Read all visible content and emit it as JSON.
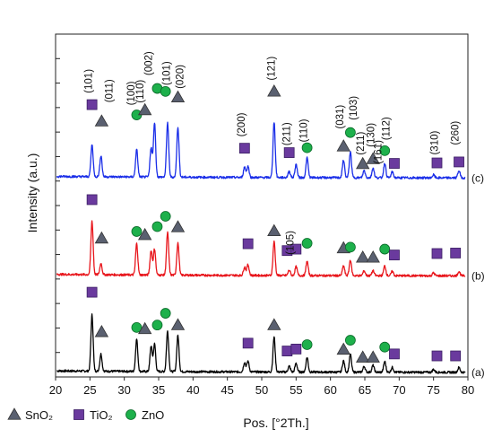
{
  "chart_data": {
    "type": "line",
    "title": "",
    "xlabel": "Pos. [°2Th.]",
    "ylabel": "Intensity (a.u.)",
    "xlim": [
      20,
      80
    ],
    "x_ticks": [
      20,
      25,
      30,
      35,
      40,
      45,
      50,
      55,
      60,
      65,
      70,
      75,
      80
    ],
    "grid": false,
    "legend": {
      "position": "bottom-left",
      "entries": [
        {
          "label": "SnO₂",
          "marker": "triangle",
          "color": "#5a6070"
        },
        {
          "label": "TiO₂",
          "marker": "square",
          "color": "#6a3a9e"
        },
        {
          "label": "ZnO",
          "marker": "circle",
          "color": "#1db04b"
        }
      ]
    },
    "series": [
      {
        "label": "(a)",
        "color": "#000000",
        "baseline": 0.9,
        "peaks": [
          {
            "x": 25.3,
            "h": 11.5
          },
          {
            "x": 26.6,
            "h": 3.5
          },
          {
            "x": 31.8,
            "h": 6.6
          },
          {
            "x": 33.9,
            "h": 5.2
          },
          {
            "x": 34.4,
            "h": 5.6
          },
          {
            "x": 36.3,
            "h": 8.3
          },
          {
            "x": 37.8,
            "h": 7.4
          },
          {
            "x": 47.5,
            "h": 1.9
          },
          {
            "x": 48.0,
            "h": 2.2
          },
          {
            "x": 51.8,
            "h": 7.1
          },
          {
            "x": 54.0,
            "h": 1.2
          },
          {
            "x": 55.0,
            "h": 1.8
          },
          {
            "x": 56.6,
            "h": 3.0
          },
          {
            "x": 61.9,
            "h": 2.3
          },
          {
            "x": 62.9,
            "h": 3.6
          },
          {
            "x": 64.9,
            "h": 1.2
          },
          {
            "x": 66.2,
            "h": 1.4
          },
          {
            "x": 67.9,
            "h": 2.2
          },
          {
            "x": 69.0,
            "h": 1.0
          },
          {
            "x": 75.0,
            "h": 0.6
          },
          {
            "x": 78.7,
            "h": 1.0
          }
        ],
        "markers": [
          {
            "type": "TiO2",
            "x": 25.3,
            "y": 17.3
          },
          {
            "type": "SnO2",
            "x": 26.7,
            "y": 9.2
          },
          {
            "type": "ZnO",
            "x": 31.8,
            "y": 10.1
          },
          {
            "type": "SnO2",
            "x": 33.0,
            "y": 9.8
          },
          {
            "type": "ZnO",
            "x": 34.8,
            "y": 10.6
          },
          {
            "type": "ZnO",
            "x": 36.0,
            "y": 13.0
          },
          {
            "type": "SnO2",
            "x": 37.8,
            "y": 10.6
          },
          {
            "type": "TiO2",
            "x": 48.0,
            "y": 6.9
          },
          {
            "type": "SnO2",
            "x": 51.8,
            "y": 10.6
          },
          {
            "type": "TiO2",
            "x": 53.7,
            "y": 5.3
          },
          {
            "type": "TiO2",
            "x": 55.0,
            "y": 5.7
          },
          {
            "type": "ZnO",
            "x": 56.6,
            "y": 6.6
          },
          {
            "type": "SnO2",
            "x": 61.9,
            "y": 5.6
          },
          {
            "type": "ZnO",
            "x": 62.9,
            "y": 7.5
          },
          {
            "type": "SnO2",
            "x": 64.7,
            "y": 4.0
          },
          {
            "type": "SnO2",
            "x": 66.2,
            "y": 4.0
          },
          {
            "type": "ZnO",
            "x": 67.9,
            "y": 6.1
          },
          {
            "type": "TiO2",
            "x": 69.3,
            "y": 4.7
          },
          {
            "type": "TiO2",
            "x": 75.5,
            "y": 4.3
          },
          {
            "type": "TiO2",
            "x": 78.2,
            "y": 4.3
          }
        ]
      },
      {
        "label": "(b)",
        "color": "#e8151b",
        "baseline": 20.6,
        "peaks": [
          {
            "x": 25.3,
            "h": 11.0
          },
          {
            "x": 26.6,
            "h": 2.3
          },
          {
            "x": 31.8,
            "h": 6.4
          },
          {
            "x": 33.9,
            "h": 5.0
          },
          {
            "x": 34.4,
            "h": 5.3
          },
          {
            "x": 36.3,
            "h": 8.7
          },
          {
            "x": 37.8,
            "h": 6.6
          },
          {
            "x": 47.5,
            "h": 1.7
          },
          {
            "x": 48.0,
            "h": 2.2
          },
          {
            "x": 51.8,
            "h": 6.9
          },
          {
            "x": 54.0,
            "h": 1.1
          },
          {
            "x": 55.0,
            "h": 1.8
          },
          {
            "x": 56.6,
            "h": 2.9
          },
          {
            "x": 61.9,
            "h": 2.0
          },
          {
            "x": 62.9,
            "h": 3.2
          },
          {
            "x": 64.9,
            "h": 1.0
          },
          {
            "x": 66.2,
            "h": 1.0
          },
          {
            "x": 67.9,
            "h": 2.0
          },
          {
            "x": 69.0,
            "h": 0.9
          },
          {
            "x": 75.0,
            "h": 0.6
          },
          {
            "x": 78.7,
            "h": 0.9
          }
        ],
        "markers": [
          {
            "type": "TiO2",
            "x": 25.3,
            "y": 36.2
          },
          {
            "type": "SnO2",
            "x": 26.7,
            "y": 28.3
          },
          {
            "type": "ZnO",
            "x": 31.8,
            "y": 29.7
          },
          {
            "type": "SnO2",
            "x": 33.0,
            "y": 29.0
          },
          {
            "type": "ZnO",
            "x": 34.8,
            "y": 30.7
          },
          {
            "type": "ZnO",
            "x": 36.0,
            "y": 32.8
          },
          {
            "type": "SnO2",
            "x": 37.8,
            "y": 30.6
          },
          {
            "type": "TiO2",
            "x": 48.0,
            "y": 27.2
          },
          {
            "type": "SnO2",
            "x": 51.8,
            "y": 29.8
          },
          {
            "type": "TiO2",
            "x": 53.7,
            "y": 25.8
          },
          {
            "type": "TiO2",
            "x": 55.0,
            "y": 26.1
          },
          {
            "type": "ZnO",
            "x": 56.6,
            "y": 27.3
          },
          {
            "type": "SnO2",
            "x": 61.9,
            "y": 26.3
          },
          {
            "type": "ZnO",
            "x": 62.9,
            "y": 26.5
          },
          {
            "type": "SnO2",
            "x": 64.7,
            "y": 24.4
          },
          {
            "type": "SnO2",
            "x": 66.2,
            "y": 24.4
          },
          {
            "type": "ZnO",
            "x": 67.9,
            "y": 26.1
          },
          {
            "type": "TiO2",
            "x": 69.3,
            "y": 24.9
          },
          {
            "type": "TiO2",
            "x": 75.5,
            "y": 25.2
          },
          {
            "type": "TiO2",
            "x": 78.2,
            "y": 25.3
          }
        ],
        "annotations": [
          {
            "text": "(105)",
            "x": 54.6,
            "y": 27.4
          }
        ]
      },
      {
        "label": "(c)",
        "color": "#1a2ee8",
        "baseline": 40.6,
        "peaks": [
          {
            "x": 25.3,
            "h": 6.6
          },
          {
            "x": 26.6,
            "h": 4.3
          },
          {
            "x": 31.8,
            "h": 5.6
          },
          {
            "x": 33.9,
            "h": 6.0
          },
          {
            "x": 34.4,
            "h": 11.1
          },
          {
            "x": 36.3,
            "h": 11.1
          },
          {
            "x": 37.8,
            "h": 10.3
          },
          {
            "x": 47.5,
            "h": 2.1
          },
          {
            "x": 48.0,
            "h": 2.3
          },
          {
            "x": 51.8,
            "h": 11.3
          },
          {
            "x": 54.0,
            "h": 1.3
          },
          {
            "x": 55.0,
            "h": 2.7
          },
          {
            "x": 56.6,
            "h": 4.0
          },
          {
            "x": 61.9,
            "h": 3.6
          },
          {
            "x": 62.9,
            "h": 5.2
          },
          {
            "x": 64.9,
            "h": 1.5
          },
          {
            "x": 66.2,
            "h": 2.0
          },
          {
            "x": 67.9,
            "h": 3.0
          },
          {
            "x": 69.0,
            "h": 1.2
          },
          {
            "x": 75.0,
            "h": 0.6
          },
          {
            "x": 78.7,
            "h": 1.5
          }
        ],
        "markers": [
          {
            "type": "TiO2",
            "x": 25.3,
            "y": 55.6
          },
          {
            "type": "SnO2",
            "x": 26.7,
            "y": 52.2
          },
          {
            "type": "ZnO",
            "x": 31.8,
            "y": 53.5
          },
          {
            "type": "SnO2",
            "x": 33.0,
            "y": 54.5
          },
          {
            "type": "ZnO",
            "x": 34.8,
            "y": 58.9
          },
          {
            "type": "ZnO",
            "x": 36.0,
            "y": 58.3
          },
          {
            "type": "SnO2",
            "x": 37.8,
            "y": 57.1
          },
          {
            "type": "TiO2",
            "x": 47.5,
            "y": 46.7
          },
          {
            "type": "SnO2",
            "x": 51.8,
            "y": 58.3
          },
          {
            "type": "TiO2",
            "x": 54.0,
            "y": 45.8
          },
          {
            "type": "ZnO",
            "x": 56.6,
            "y": 46.8
          },
          {
            "type": "SnO2",
            "x": 61.9,
            "y": 47.1
          },
          {
            "type": "ZnO",
            "x": 62.9,
            "y": 49.9
          },
          {
            "type": "SnO2",
            "x": 64.7,
            "y": 43.5
          },
          {
            "type": "SnO2",
            "x": 66.2,
            "y": 44.5
          },
          {
            "type": "ZnO",
            "x": 67.9,
            "y": 46.2
          },
          {
            "type": "TiO2",
            "x": 69.3,
            "y": 43.6
          },
          {
            "type": "TiO2",
            "x": 75.5,
            "y": 43.7
          },
          {
            "type": "TiO2",
            "x": 78.7,
            "y": 43.9
          }
        ],
        "annotations": [
          {
            "text": "(101)",
            "x": 25.3,
            "y": 60.4
          },
          {
            "text": "(011)",
            "x": 28.3,
            "y": 58.4
          },
          {
            "text": "(100)",
            "x": 31.5,
            "y": 57.9
          },
          {
            "text": "(110)",
            "x": 32.8,
            "y": 58.3
          },
          {
            "text": "(002)",
            "x": 34.0,
            "y": 64.0
          },
          {
            "text": "(101)",
            "x": 36.6,
            "y": 62.0
          },
          {
            "text": "(020)",
            "x": 38.6,
            "y": 61.3
          },
          {
            "text": "(121)",
            "x": 51.9,
            "y": 63.0
          },
          {
            "text": "(200)",
            "x": 47.5,
            "y": 51.5
          },
          {
            "text": "(211)",
            "x": 54.1,
            "y": 49.6
          },
          {
            "text": "(110)",
            "x": 56.6,
            "y": 50.3
          },
          {
            "text": "(031)",
            "x": 61.9,
            "y": 53.1
          },
          {
            "text": "(103)",
            "x": 63.8,
            "y": 54.9
          },
          {
            "text": "(211)",
            "x": 64.9,
            "y": 47.7
          },
          {
            "text": "(130)",
            "x": 66.4,
            "y": 49.4
          },
          {
            "text": "(112)",
            "x": 68.6,
            "y": 50.7
          },
          {
            "text": "(161)",
            "x": 67.4,
            "y": 45.9
          },
          {
            "text": "(310)",
            "x": 75.6,
            "y": 47.8
          },
          {
            "text": "(260)",
            "x": 78.6,
            "y": 49.8
          }
        ]
      }
    ]
  }
}
